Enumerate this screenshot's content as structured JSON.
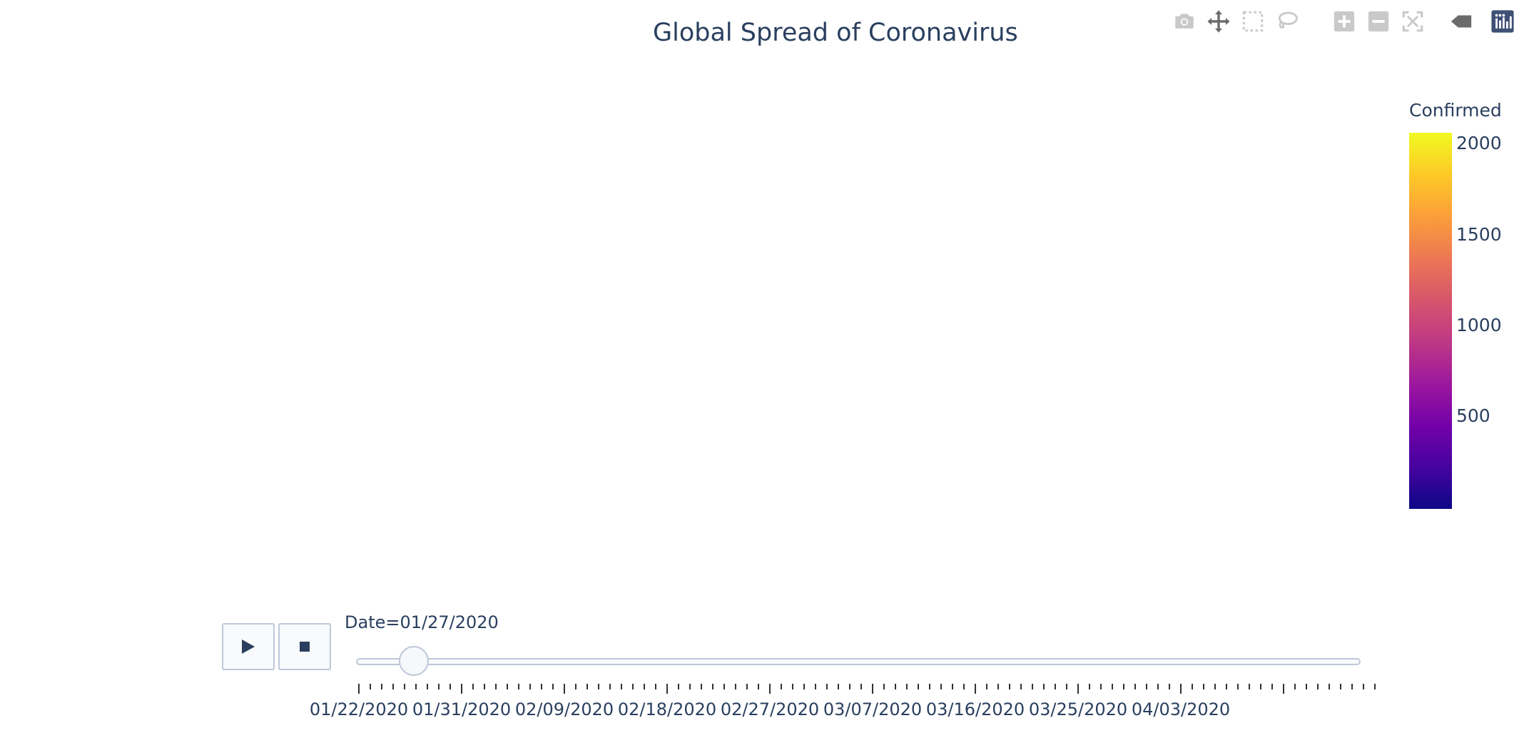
{
  "chart_data": {
    "type": "choropleth",
    "title": "Global Spread of Coronavirus",
    "colorbar": {
      "title": "Confirmed",
      "range": [
        0,
        2100
      ],
      "tick_labels": [
        "2000",
        "1500",
        "1000",
        "500"
      ],
      "tick_values": [
        2000,
        1500,
        1000,
        500
      ],
      "colorscale": [
        "#0d0887",
        "#46039f",
        "#7201a8",
        "#9c179e",
        "#bd3786",
        "#d8576b",
        "#ed7953",
        "#fb9f3a",
        "#fdca26",
        "#f0f921"
      ]
    },
    "slider": {
      "current_value_text": "Date=01/27/2020",
      "current_date": "01/27/2020",
      "current_index": 5,
      "total_steps": 90,
      "labeled_dates": [
        "01/22/2020",
        "01/31/2020",
        "02/09/2020",
        "02/18/2020",
        "02/27/2020",
        "03/07/2020",
        "03/16/2020",
        "03/25/2020",
        "04/03/2020"
      ],
      "label_every": 9
    }
  },
  "controls": {
    "play_icon": "play-icon",
    "stop_icon": "stop-icon"
  },
  "modebar": {
    "icons": [
      "camera-icon",
      "pan-icon",
      "box-select-icon",
      "lasso-icon",
      "zoom-in-icon",
      "zoom-out-icon",
      "autoscale-icon",
      "hover-tag-icon",
      "plotly-logo-icon"
    ]
  }
}
